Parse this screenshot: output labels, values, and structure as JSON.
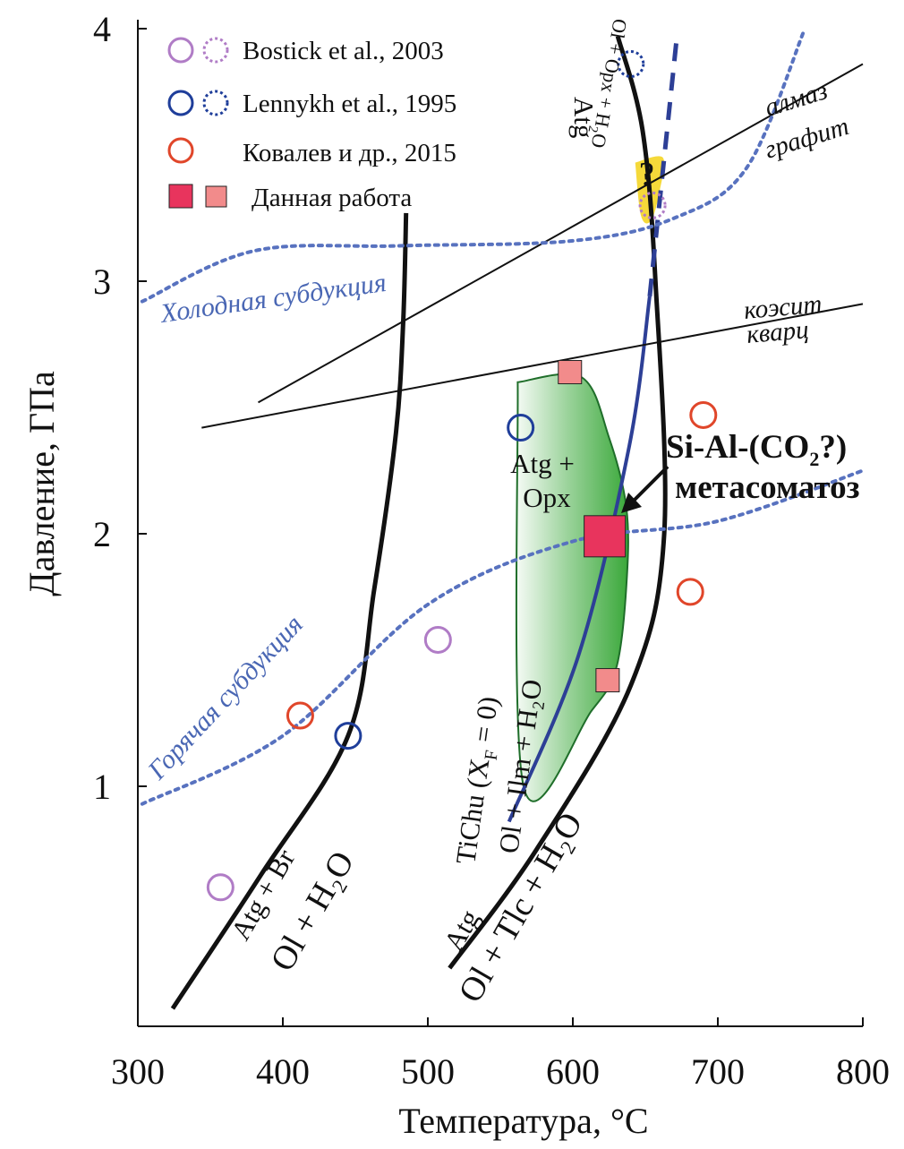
{
  "chart_data": {
    "type": "scatter",
    "xlabel": "Температура, °C",
    "ylabel": "Давление, ГПа",
    "xlim": [
      300,
      800
    ],
    "ylim": [
      0.1,
      4
    ],
    "x_ticks": [
      300,
      400,
      500,
      600,
      700,
      800
    ],
    "y_ticks": [
      1,
      2,
      3,
      4
    ],
    "grid": false,
    "legend_position": "top-left",
    "legend": [
      {
        "label": "Bostick et al., 2003",
        "color": "#b07cc6",
        "marker": "circle-solid-and-dotted"
      },
      {
        "label": "Lennykh et al., 1995",
        "color": "#1f3e9a",
        "marker": "circle-solid-and-dotted"
      },
      {
        "label": "Ковалев и др., 2015",
        "color": "#e0462a",
        "marker": "circle"
      },
      {
        "label": "Данная работа",
        "color": "#e8345d",
        "color_light": "#f28b8b",
        "marker": "square"
      }
    ],
    "points": [
      {
        "set": "Bostick et al., 2003",
        "x": 357,
        "y": 0.6,
        "style": "solid"
      },
      {
        "set": "Bostick et al., 2003",
        "x": 507,
        "y": 1.58,
        "style": "solid"
      },
      {
        "set": "Bostick et al., 2003",
        "x": 655,
        "y": 3.3,
        "style": "dotted"
      },
      {
        "set": "Lennykh et al., 1995",
        "x": 445,
        "y": 1.2,
        "style": "solid"
      },
      {
        "set": "Lennykh et al., 1995",
        "x": 564,
        "y": 2.42,
        "style": "solid"
      },
      {
        "set": "Lennykh et al., 1995",
        "x": 640,
        "y": 3.86,
        "style": "dotted"
      },
      {
        "set": "Ковалев и др., 2015",
        "x": 412,
        "y": 1.28,
        "style": "solid"
      },
      {
        "set": "Ковалев и др., 2015",
        "x": 690,
        "y": 2.47,
        "style": "solid"
      },
      {
        "set": "Ковалев и др., 2015",
        "x": 681,
        "y": 1.77,
        "style": "solid"
      },
      {
        "set": "Данная работа",
        "x": 622,
        "y": 1.99,
        "style": "large"
      },
      {
        "set": "Данная работа",
        "x": 598,
        "y": 2.64,
        "style": "small"
      },
      {
        "set": "Данная работа",
        "x": 624,
        "y": 1.42,
        "style": "small"
      }
    ],
    "curves": [
      {
        "id": "atg-br",
        "reaction": "Atg + Br = Ol + H2O",
        "style": "thick-black",
        "points": [
          [
            324,
            0.12
          ],
          [
            385,
            0.65
          ],
          [
            445,
            1.2
          ],
          [
            463,
            1.78
          ],
          [
            478,
            2.4
          ],
          [
            483,
            2.84
          ],
          [
            485,
            3.27
          ]
        ]
      },
      {
        "id": "atg-tlc",
        "reaction": "Atg = Ol + Tlc + H2O",
        "style": "thick-black",
        "points": [
          [
            515,
            0.28
          ],
          [
            575,
            0.75
          ],
          [
            640,
            1.4
          ],
          [
            663,
            2.0
          ],
          [
            657,
            3.0
          ],
          [
            648,
            3.6
          ],
          [
            631,
            3.97
          ]
        ]
      },
      {
        "id": "tichu",
        "reaction": "TiChu (XF = 0) = Ol + Ilm + H2O",
        "style": "blue",
        "points": [
          [
            556,
            0.86
          ],
          [
            604,
            1.52
          ],
          [
            639,
            2.35
          ],
          [
            653,
            2.94
          ]
        ]
      },
      {
        "id": "tichu-ext",
        "style": "blue-dashed",
        "points": [
          [
            653,
            2.94
          ],
          [
            672,
            3.98
          ]
        ]
      },
      {
        "id": "diamond-graphite",
        "label_top": "алмаз",
        "label_bottom": "графит",
        "style": "thin-black",
        "points": [
          [
            383,
            2.52
          ],
          [
            800,
            3.86
          ]
        ]
      },
      {
        "id": "coesite-quartz",
        "label_top": "коэсит",
        "label_bottom": "кварц",
        "style": "thin-black",
        "points": [
          [
            344,
            2.42
          ],
          [
            800,
            2.91
          ]
        ]
      },
      {
        "id": "cold-subduction",
        "label": "Холодная субдукция",
        "style": "blue-dotted",
        "points": [
          [
            303,
            2.92
          ],
          [
            380,
            3.12
          ],
          [
            480,
            3.14
          ],
          [
            600,
            3.16
          ],
          [
            670,
            3.25
          ],
          [
            720,
            3.45
          ],
          [
            760,
            4.0
          ]
        ]
      },
      {
        "id": "hot-subduction",
        "label": "Горячая субдукция",
        "style": "blue-dotted",
        "points": [
          [
            303,
            0.93
          ],
          [
            400,
            1.2
          ],
          [
            500,
            1.72
          ],
          [
            600,
            1.97
          ],
          [
            700,
            2.05
          ],
          [
            800,
            2.25
          ]
        ]
      }
    ],
    "regions": [
      {
        "id": "atg-opx-field",
        "label": "Atg + Opx",
        "color": "#3aa83a",
        "points": [
          [
            562,
            2.6
          ],
          [
            606,
            2.62
          ],
          [
            625,
            2.38
          ],
          [
            637,
            2.1
          ],
          [
            637,
            1.8
          ],
          [
            630,
            1.47
          ],
          [
            613,
            1.3
          ],
          [
            566,
            1.0
          ]
        ]
      },
      {
        "id": "uncertain-field",
        "label": "?",
        "color": "#f5d93a",
        "points": [
          [
            643,
            3.47
          ],
          [
            662,
            3.49
          ],
          [
            660,
            3.36
          ],
          [
            654,
            3.24
          ],
          [
            647,
            3.26
          ]
        ]
      }
    ],
    "annotations": {
      "atg_br_top": "Atg + Br",
      "atg_br_bottom": "Ol + H₂O",
      "atg_tlc_top": "Atg",
      "atg_tlc_bottom": "Ol + Tlc + H₂O",
      "tichu_top": "TiChu (X",
      "tichu_sub": "F",
      "tichu_end": " = 0)",
      "tichu_bottom": "Ol + Ilm + H₂O",
      "atg_ol_top": "Atg",
      "atg_ol_bottom_a": "Ol + Opx + H",
      "atg_ol_bottom_sub": "2",
      "atg_ol_bottom_b": "O",
      "field_line1": "Atg +",
      "field_line2": "Opx",
      "question": "?",
      "meta_line1_a": "Si-Al-(CO",
      "meta_line1_sub": "2",
      "meta_line1_b": "?)",
      "meta_line2": "метасоматоз",
      "cold": "Холодная субдукция",
      "hot": "Горячая субдукция",
      "diamond": "алмаз",
      "graphite": "графит",
      "coesite": "коэсит",
      "quartz": "кварц"
    }
  }
}
